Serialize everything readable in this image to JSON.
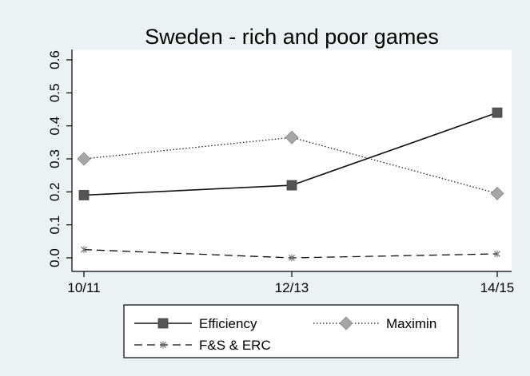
{
  "chart_data": {
    "type": "line",
    "title": "Sweden - rich and poor games",
    "xlabel": "",
    "ylabel": "",
    "categories": [
      "10/11",
      "12/13",
      "14/15"
    ],
    "ylim": [
      -0.02,
      0.62
    ],
    "yticks": [
      "0.0",
      "0.1",
      "0.2",
      "0.3",
      "0.4",
      "0.5",
      "0.6"
    ],
    "grid": false,
    "legend_position": "bottom",
    "series": [
      {
        "name": "Efficiency",
        "values": [
          0.19,
          0.22,
          0.44
        ],
        "line_style": "solid",
        "marker": "square",
        "color": "#555555"
      },
      {
        "name": "Maximin",
        "values": [
          0.3,
          0.365,
          0.195
        ],
        "line_style": "dotted",
        "marker": "diamond",
        "color": "#a6a6a6"
      },
      {
        "name": "F&S & ERC",
        "values": [
          0.025,
          0.0,
          0.012
        ],
        "line_style": "dashed",
        "marker": "x",
        "color": "#777777"
      }
    ],
    "colors": {
      "background": "#eaf2f3",
      "plot_area": "#ffffff",
      "axis": "#000000"
    }
  }
}
